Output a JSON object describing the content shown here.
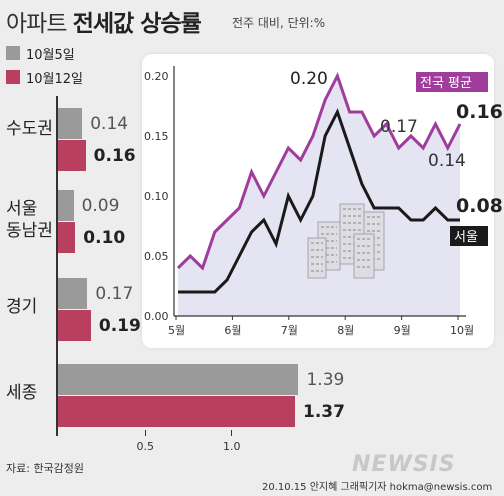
{
  "title": {
    "plain": "아파트",
    "bold": "전세값 상승률",
    "sub": "전주 대비, 단위:%"
  },
  "legend": [
    {
      "label": "10월5일",
      "color": "#9a9a9a"
    },
    {
      "label": "10월12일",
      "color": "#b8405e"
    }
  ],
  "bar_axis_ticks": [
    "0.5",
    "1.0"
  ],
  "source": "자료: 한국감정원",
  "credit": "20.10.15 안지혜 그래픽기자 hokma@newsis.com",
  "logo": "NEWSIS",
  "colors": {
    "prev": "#9a9a9a",
    "curr": "#b8405e",
    "national": "#a03c9c",
    "seoul": "#1a1a1a",
    "fill": "#e5e4f2"
  },
  "chart_data": [
    {
      "type": "bar",
      "categories": [
        "수도권",
        "서울 동남권",
        "경기",
        "세종"
      ],
      "series": [
        {
          "name": "10월5일",
          "values": [
            0.14,
            0.09,
            0.17,
            1.39
          ]
        },
        {
          "name": "10월12일",
          "values": [
            0.16,
            0.1,
            0.19,
            1.37
          ]
        }
      ],
      "xlim": [
        0,
        1.5
      ]
    },
    {
      "type": "line",
      "x_ticks": [
        "5월",
        "6월",
        "7월",
        "8월",
        "9월",
        "10월"
      ],
      "y_ticks": [
        "0.00",
        "0.05",
        "0.10",
        "0.15",
        "0.20"
      ],
      "ylim": [
        0,
        0.2
      ],
      "series": [
        {
          "name": "전국 평균",
          "values": [
            0.04,
            0.05,
            0.04,
            0.07,
            0.08,
            0.09,
            0.12,
            0.1,
            0.12,
            0.14,
            0.13,
            0.15,
            0.18,
            0.2,
            0.17,
            0.17,
            0.15,
            0.16,
            0.14,
            0.15,
            0.14,
            0.16,
            0.14,
            0.16
          ]
        },
        {
          "name": "서울",
          "values": [
            0.02,
            0.02,
            0.02,
            0.02,
            0.03,
            0.05,
            0.07,
            0.08,
            0.06,
            0.1,
            0.08,
            0.1,
            0.15,
            0.17,
            0.14,
            0.11,
            0.09,
            0.09,
            0.09,
            0.08,
            0.08,
            0.09,
            0.08,
            0.08
          ]
        }
      ],
      "annotations": [
        "0.20",
        "0.17",
        "0.14",
        "0.16",
        "0.08"
      ]
    }
  ]
}
